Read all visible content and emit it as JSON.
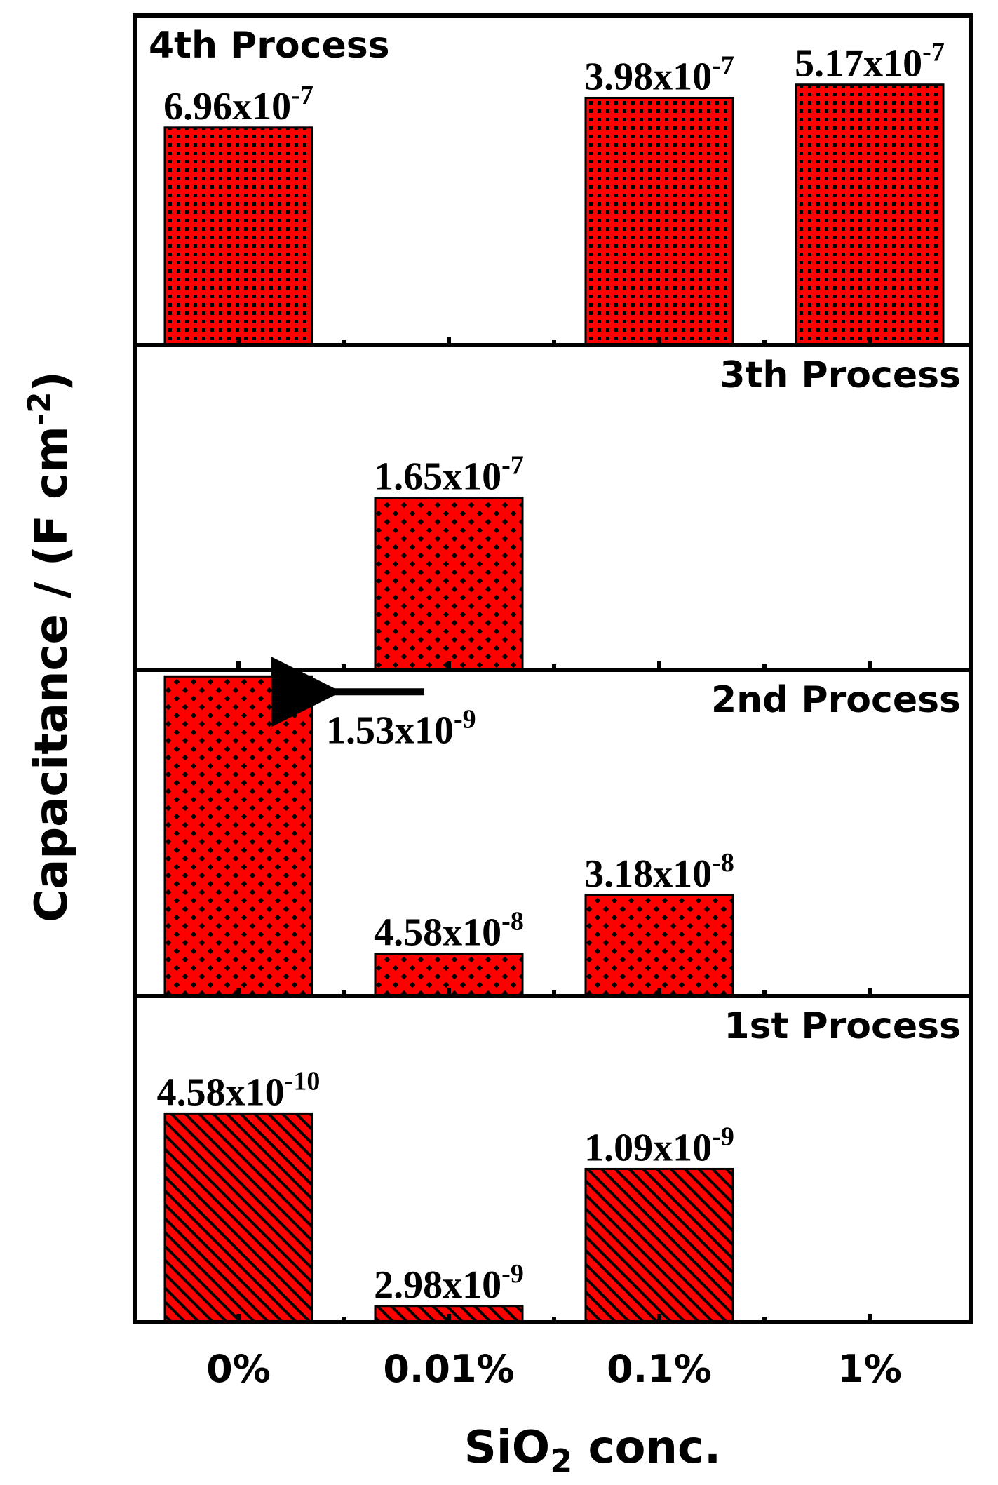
{
  "chart_data": {
    "type": "bar",
    "ylabel": "Capacitance / (F cm",
    "ylabel_sup": "-2",
    "ylabel_close": ")",
    "xlabel": "SiO",
    "xlabel_sub": "2",
    "xlabel_rest": " conc.",
    "categories": [
      "0%",
      "0.01%",
      "0.1%",
      "1%"
    ],
    "bar_color": "#ff0000",
    "panels": [
      {
        "title": "4th Process",
        "title_position": "top-left",
        "pattern": "square-grid",
        "values": [
          6.96e-07,
          null,
          3.98e-07,
          5.17e-07
        ],
        "labels": [
          {
            "mantissa": "6.96x10",
            "exp": "-7"
          },
          null,
          {
            "mantissa": "3.98x10",
            "exp": "-7"
          },
          {
            "mantissa": "5.17x10",
            "exp": "-7"
          }
        ]
      },
      {
        "title": "3th Process",
        "title_position": "top-right",
        "pattern": "diamond-dots",
        "values": [
          null,
          1.65e-07,
          null,
          null
        ],
        "labels": [
          null,
          {
            "mantissa": "1.65x10",
            "exp": "-7"
          },
          null,
          null
        ]
      },
      {
        "title": "2nd Process",
        "title_position": "top-right",
        "pattern": "diamond-dots",
        "values": [
          1.53e-09,
          4.58e-08,
          3.18e-08,
          null
        ],
        "labels": [
          {
            "mantissa": "1.53x10",
            "exp": "-9",
            "arrow": true
          },
          {
            "mantissa": "4.58x10",
            "exp": "-8"
          },
          {
            "mantissa": "3.18x10",
            "exp": "-8"
          },
          null
        ]
      },
      {
        "title": "1st Process",
        "title_position": "top-right",
        "pattern": "diagonal-hatch",
        "values": [
          4.58e-10,
          2.98e-09,
          1.09e-09,
          null
        ],
        "labels": [
          {
            "mantissa": "4.58x10",
            "exp": "-10"
          },
          {
            "mantissa": "2.98x10",
            "exp": "-9"
          },
          {
            "mantissa": "1.09x10",
            "exp": "-9"
          },
          null
        ]
      }
    ]
  }
}
